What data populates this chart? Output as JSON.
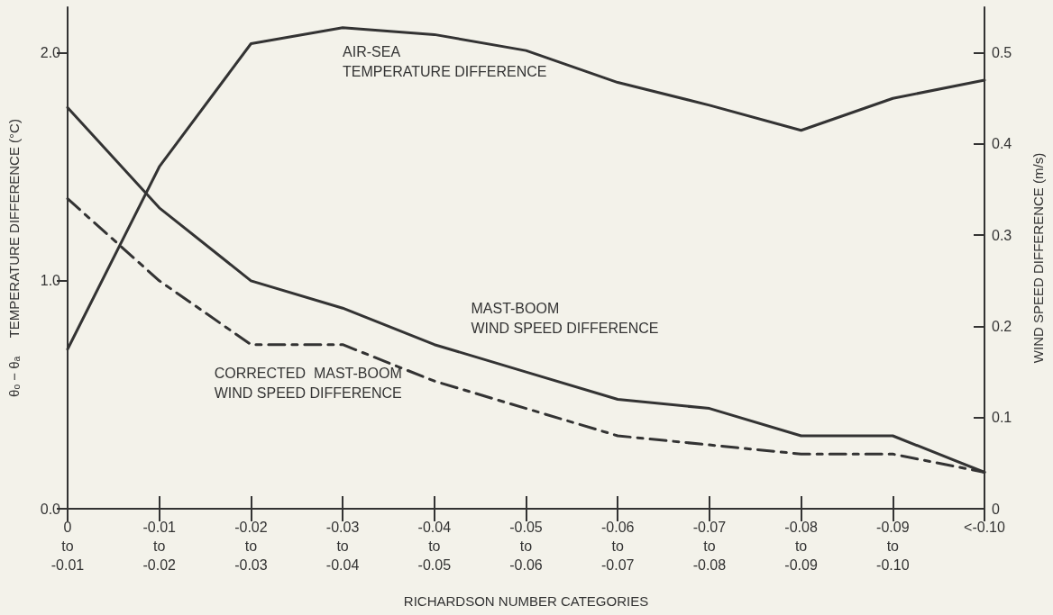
{
  "chart_data": {
    "type": "line",
    "xlabel": "RICHARDSON NUMBER CATEGORIES",
    "ylabel": "θₒ − θₐ     TEMPERATURE DIFFERENCE (°C)",
    "y2label": "WIND SPEED DIFFERENCE (m/s)",
    "categories": [
      "0\nto\n-0.01",
      "-0.01\nto\n-0.02",
      "-0.02\nto\n-0.03",
      "-0.03\nto\n-0.04",
      "-0.04\nto\n-0.05",
      "-0.05\nto\n-0.06",
      "-0.06\nto\n-0.07",
      "-0.07\nto\n-0.08",
      "-0.08\nto\n-0.09",
      "-0.09\nto\n-0.10",
      "<-0.10"
    ],
    "series": [
      {
        "name": "AIR-SEA\nTEMPERATURE DIFFERENCE",
        "color": "#333333",
        "values": [
          0.7,
          1.5,
          2.04,
          2.11,
          2.08,
          2.01,
          1.87,
          1.77,
          1.66,
          1.8,
          1.88
        ]
      },
      {
        "name": "MAST-BOOM\nWIND SPEED DIFFERENCE",
        "color": "#333333",
        "axis": "y2",
        "values": [
          0.44,
          0.33,
          0.25,
          0.22,
          0.18,
          0.15,
          0.12,
          0.11,
          0.08,
          0.08,
          0.04
        ]
      },
      {
        "name": "CORRECTED  MAST-BOOM\nWIND SPEED DIFFERENCE",
        "color": "#333333",
        "axis": "y2",
        "line_style": "dashed",
        "values": [
          0.34,
          0.25,
          0.18,
          0.18,
          0.14,
          0.11,
          0.08,
          0.07,
          0.06,
          0.06,
          0.04
        ]
      }
    ],
    "ylim": [
      0,
      2.2
    ],
    "yticks": [
      {
        "value": 0,
        "label": "0.0"
      },
      {
        "value": 1,
        "label": "1.0"
      },
      {
        "value": 2,
        "label": "2.0"
      }
    ],
    "y2lim": [
      0,
      0.55
    ],
    "y2ticks": [
      0,
      0.1,
      0.2,
      0.3,
      0.4,
      0.5
    ],
    "grid": false,
    "legend": false,
    "marker": "none",
    "line_style": "solid"
  }
}
